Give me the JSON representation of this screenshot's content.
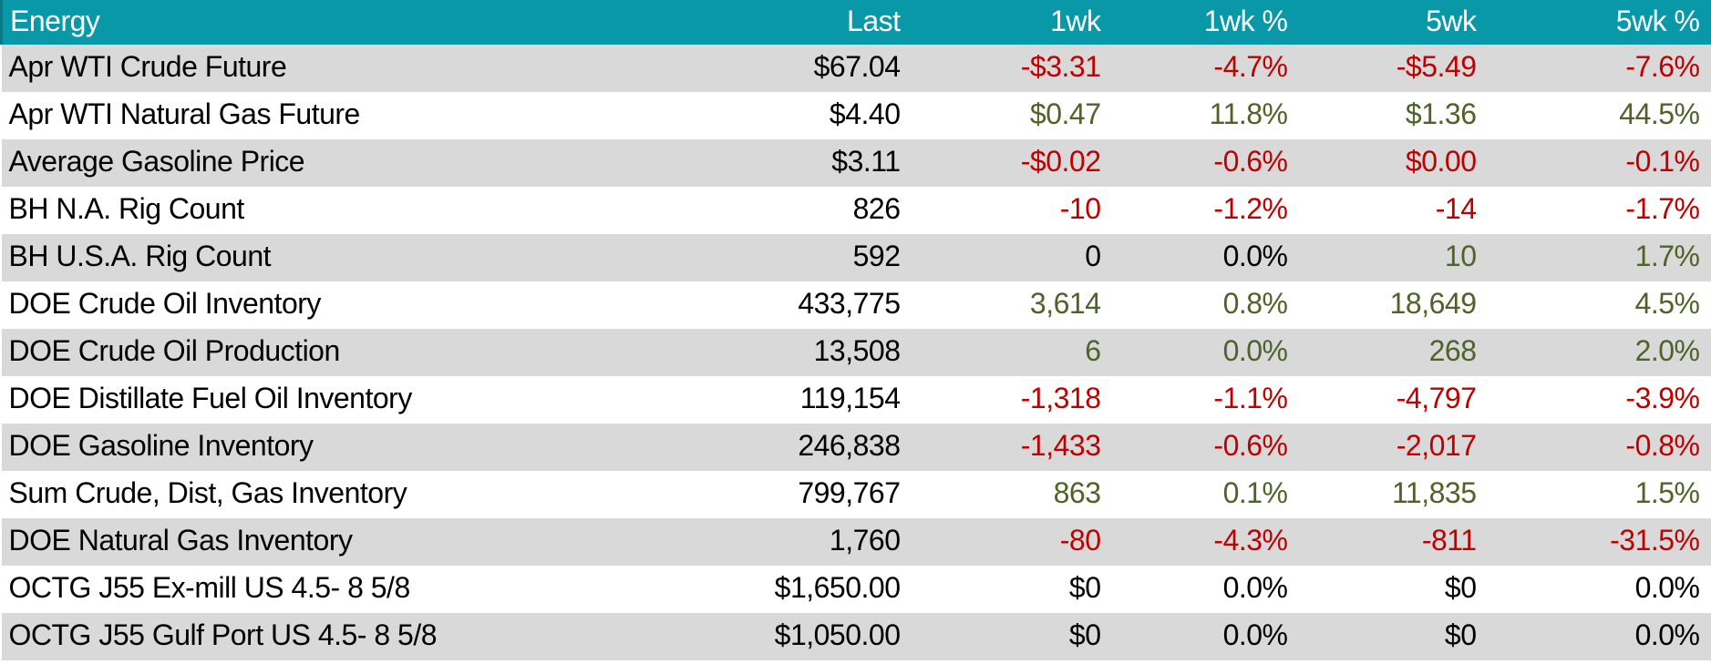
{
  "colors": {
    "header_bg": "#0998A8",
    "header_edge": "#0A7A87",
    "header_text": "#FFFFFF",
    "row_alt_bg": "#D9D9D9",
    "row_bg": "#FFFFFF",
    "positive": "#4F6228",
    "negative": "#C00000",
    "neutral": "#000000"
  },
  "chart_data": {
    "type": "table",
    "title": "Energy",
    "columns": [
      "Energy",
      "Last",
      "1wk",
      "1wk %",
      "5wk",
      "5wk %"
    ],
    "column_keys": [
      "energy",
      "last",
      "1wk",
      "1wk-pct",
      "5wk",
      "5wk-pct"
    ],
    "rows": [
      {
        "label": "Apr WTI Crude Future",
        "cells": [
          {
            "value": "$67.04",
            "trend": "flat"
          },
          {
            "value": "-$3.31",
            "trend": "neg"
          },
          {
            "value": "-4.7%",
            "trend": "neg"
          },
          {
            "value": "-$5.49",
            "trend": "neg"
          },
          {
            "value": "-7.6%",
            "trend": "neg"
          }
        ]
      },
      {
        "label": "Apr WTI Natural Gas Future",
        "cells": [
          {
            "value": "$4.40",
            "trend": "flat"
          },
          {
            "value": "$0.47",
            "trend": "pos"
          },
          {
            "value": "11.8%",
            "trend": "pos"
          },
          {
            "value": "$1.36",
            "trend": "pos"
          },
          {
            "value": "44.5%",
            "trend": "pos"
          }
        ]
      },
      {
        "label": "Average Gasoline Price",
        "cells": [
          {
            "value": "$3.11",
            "trend": "flat"
          },
          {
            "value": "-$0.02",
            "trend": "neg"
          },
          {
            "value": "-0.6%",
            "trend": "neg"
          },
          {
            "value": "$0.00",
            "trend": "neg"
          },
          {
            "value": "-0.1%",
            "trend": "neg"
          }
        ]
      },
      {
        "label": "BH N.A. Rig Count",
        "cells": [
          {
            "value": "826",
            "trend": "flat"
          },
          {
            "value": "-10",
            "trend": "neg"
          },
          {
            "value": "-1.2%",
            "trend": "neg"
          },
          {
            "value": "-14",
            "trend": "neg"
          },
          {
            "value": "-1.7%",
            "trend": "neg"
          }
        ]
      },
      {
        "label": "BH U.S.A. Rig Count",
        "cells": [
          {
            "value": "592",
            "trend": "flat"
          },
          {
            "value": "0",
            "trend": "flat"
          },
          {
            "value": "0.0%",
            "trend": "flat"
          },
          {
            "value": "10",
            "trend": "pos"
          },
          {
            "value": "1.7%",
            "trend": "pos"
          }
        ]
      },
      {
        "label": "DOE Crude Oil Inventory",
        "cells": [
          {
            "value": "433,775",
            "trend": "flat"
          },
          {
            "value": "3,614",
            "trend": "pos"
          },
          {
            "value": "0.8%",
            "trend": "pos"
          },
          {
            "value": "18,649",
            "trend": "pos"
          },
          {
            "value": "4.5%",
            "trend": "pos"
          }
        ]
      },
      {
        "label": "DOE Crude Oil Production",
        "cells": [
          {
            "value": "13,508",
            "trend": "flat"
          },
          {
            "value": "6",
            "trend": "pos"
          },
          {
            "value": "0.0%",
            "trend": "pos"
          },
          {
            "value": "268",
            "trend": "pos"
          },
          {
            "value": "2.0%",
            "trend": "pos"
          }
        ]
      },
      {
        "label": "DOE Distillate Fuel Oil Inventory",
        "cells": [
          {
            "value": "119,154",
            "trend": "flat"
          },
          {
            "value": "-1,318",
            "trend": "neg"
          },
          {
            "value": "-1.1%",
            "trend": "neg"
          },
          {
            "value": "-4,797",
            "trend": "neg"
          },
          {
            "value": "-3.9%",
            "trend": "neg"
          }
        ]
      },
      {
        "label": "DOE Gasoline Inventory",
        "cells": [
          {
            "value": "246,838",
            "trend": "flat"
          },
          {
            "value": "-1,433",
            "trend": "neg"
          },
          {
            "value": "-0.6%",
            "trend": "neg"
          },
          {
            "value": "-2,017",
            "trend": "neg"
          },
          {
            "value": "-0.8%",
            "trend": "neg"
          }
        ]
      },
      {
        "label": "Sum Crude, Dist, Gas Inventory",
        "cells": [
          {
            "value": "799,767",
            "trend": "flat"
          },
          {
            "value": "863",
            "trend": "pos"
          },
          {
            "value": "0.1%",
            "trend": "pos"
          },
          {
            "value": "11,835",
            "trend": "pos"
          },
          {
            "value": "1.5%",
            "trend": "pos"
          }
        ]
      },
      {
        "label": "DOE Natural Gas Inventory",
        "cells": [
          {
            "value": "1,760",
            "trend": "flat"
          },
          {
            "value": "-80",
            "trend": "neg"
          },
          {
            "value": "-4.3%",
            "trend": "neg"
          },
          {
            "value": "-811",
            "trend": "neg"
          },
          {
            "value": "-31.5%",
            "trend": "neg"
          }
        ]
      },
      {
        "label": "OCTG J55 Ex-mill US 4.5- 8 5/8",
        "cells": [
          {
            "value": "$1,650.00",
            "trend": "flat"
          },
          {
            "value": "$0",
            "trend": "flat"
          },
          {
            "value": "0.0%",
            "trend": "flat"
          },
          {
            "value": "$0",
            "trend": "flat"
          },
          {
            "value": "0.0%",
            "trend": "flat"
          }
        ]
      },
      {
        "label": "OCTG J55 Gulf Port US 4.5- 8 5/8",
        "cells": [
          {
            "value": "$1,050.00",
            "trend": "flat"
          },
          {
            "value": "$0",
            "trend": "flat"
          },
          {
            "value": "0.0%",
            "trend": "flat"
          },
          {
            "value": "$0",
            "trend": "flat"
          },
          {
            "value": "0.0%",
            "trend": "flat"
          }
        ]
      }
    ]
  }
}
